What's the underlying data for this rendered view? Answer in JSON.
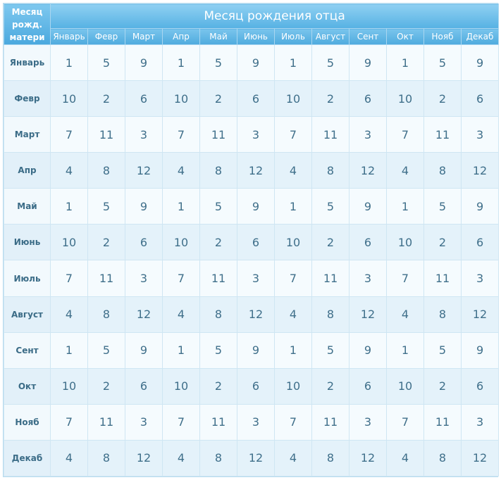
{
  "corner_label": [
    "Месяц",
    "рожд.",
    "матери"
  ],
  "title": "Месяц рождения отца",
  "columns": [
    "Январь",
    "Февр",
    "Март",
    "Апр",
    "Май",
    "Июнь",
    "Июль",
    "Август",
    "Сент",
    "Окт",
    "Нояб",
    "Декаб"
  ],
  "rows": [
    {
      "label": "Январь",
      "values": [
        "1",
        "5",
        "9",
        "1",
        "5",
        "9",
        "1",
        "5",
        "9",
        "1",
        "5",
        "9"
      ]
    },
    {
      "label": "Февр",
      "values": [
        "10",
        "2",
        "6",
        "10",
        "2",
        "6",
        "10",
        "2",
        "6",
        "10",
        "2",
        "6"
      ]
    },
    {
      "label": "Март",
      "values": [
        "7",
        "11",
        "3",
        "7",
        "11",
        "3",
        "7",
        "11",
        "3",
        "7",
        "11",
        "3"
      ]
    },
    {
      "label": "Апр",
      "values": [
        "4",
        "8",
        "12",
        "4",
        "8",
        "12",
        "4",
        "8",
        "12",
        "4",
        "8",
        "12"
      ]
    },
    {
      "label": "Май",
      "values": [
        "1",
        "5",
        "9",
        "1",
        "5",
        "9",
        "1",
        "5",
        "9",
        "1",
        "5",
        "9"
      ]
    },
    {
      "label": "Июнь",
      "values": [
        "10",
        "2",
        "6",
        "10",
        "2",
        "6",
        "10",
        "2",
        "6",
        "10",
        "2",
        "6"
      ]
    },
    {
      "label": "Июль",
      "values": [
        "7",
        "11",
        "3",
        "7",
        "11",
        "3",
        "7",
        "11",
        "3",
        "7",
        "11",
        "3"
      ]
    },
    {
      "label": "Август",
      "values": [
        "4",
        "8",
        "12",
        "4",
        "8",
        "12",
        "4",
        "8",
        "12",
        "4",
        "8",
        "12"
      ]
    },
    {
      "label": "Сент",
      "values": [
        "1",
        "5",
        "9",
        "1",
        "5",
        "9",
        "1",
        "5",
        "9",
        "1",
        "5",
        "9"
      ]
    },
    {
      "label": "Окт",
      "values": [
        "10",
        "2",
        "6",
        "10",
        "2",
        "6",
        "10",
        "2",
        "6",
        "10",
        "2",
        "6"
      ]
    },
    {
      "label": "Нояб",
      "values": [
        "7",
        "11",
        "3",
        "7",
        "11",
        "3",
        "7",
        "11",
        "3",
        "7",
        "11",
        "3"
      ]
    },
    {
      "label": "Декаб",
      "values": [
        "4",
        "8",
        "12",
        "4",
        "8",
        "12",
        "4",
        "8",
        "12",
        "4",
        "8",
        "12"
      ]
    }
  ],
  "colors": {
    "header_blue": "#56b1e3",
    "text_blue": "#3f6f8a",
    "row_light": "#f5fbfe",
    "row_dark": "#e4f2fa"
  }
}
